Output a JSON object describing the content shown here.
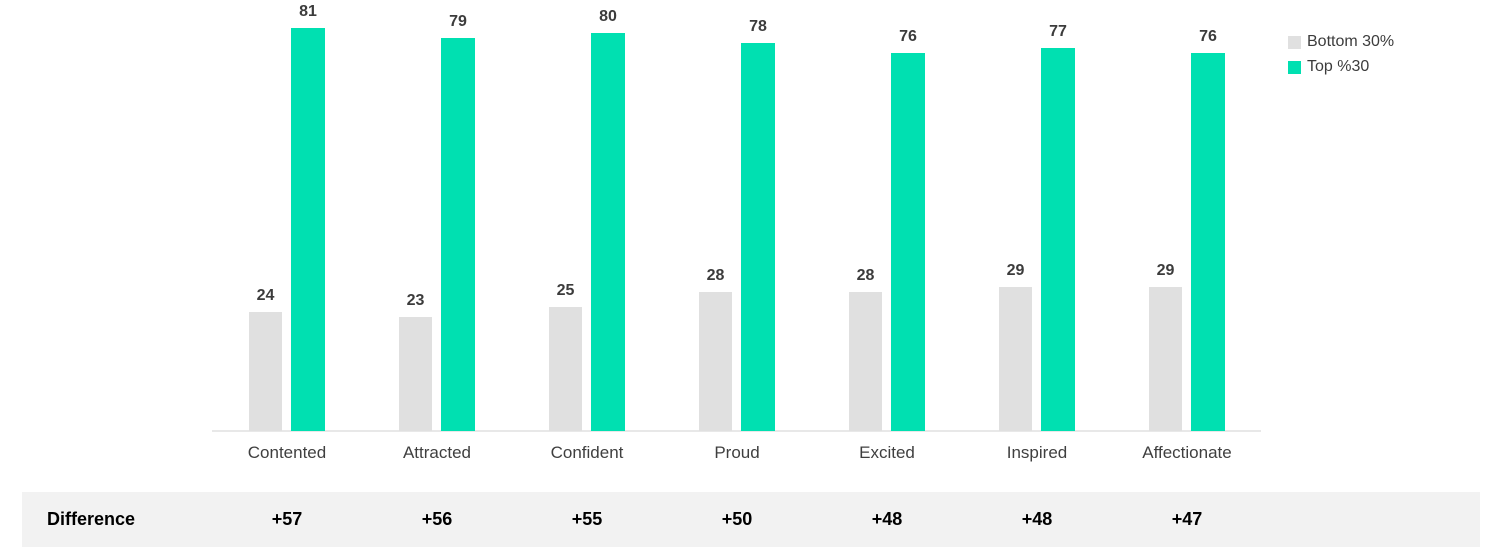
{
  "chart_data": {
    "type": "bar",
    "title": "",
    "xlabel": "",
    "ylabel": "",
    "categories": [
      "Contented",
      "Attracted",
      "Confident",
      "Proud",
      "Excited",
      "Inspired",
      "Affectionate"
    ],
    "series": [
      {
        "name": "Bottom 30%",
        "color": "#e0e0e0",
        "values": [
          24,
          23,
          25,
          28,
          28,
          29,
          29
        ]
      },
      {
        "name": "Top %30",
        "color": "#00e0b1",
        "values": [
          81,
          79,
          80,
          78,
          76,
          77,
          76
        ]
      }
    ],
    "ylim": [
      0,
      85
    ],
    "grid": false,
    "legend_position": "top-right",
    "data_labels": true
  },
  "difference_row": {
    "label": "Difference",
    "values": [
      "+57",
      "+56",
      "+55",
      "+50",
      "+48",
      "+48",
      "+47"
    ]
  },
  "colors": {
    "bottom_series": "#e0e0e0",
    "top_series": "#00e0b1",
    "difference_row_background": "#f2f2f2",
    "axis_line": "#e8e8e8",
    "label_text": "#3f3f3f"
  }
}
